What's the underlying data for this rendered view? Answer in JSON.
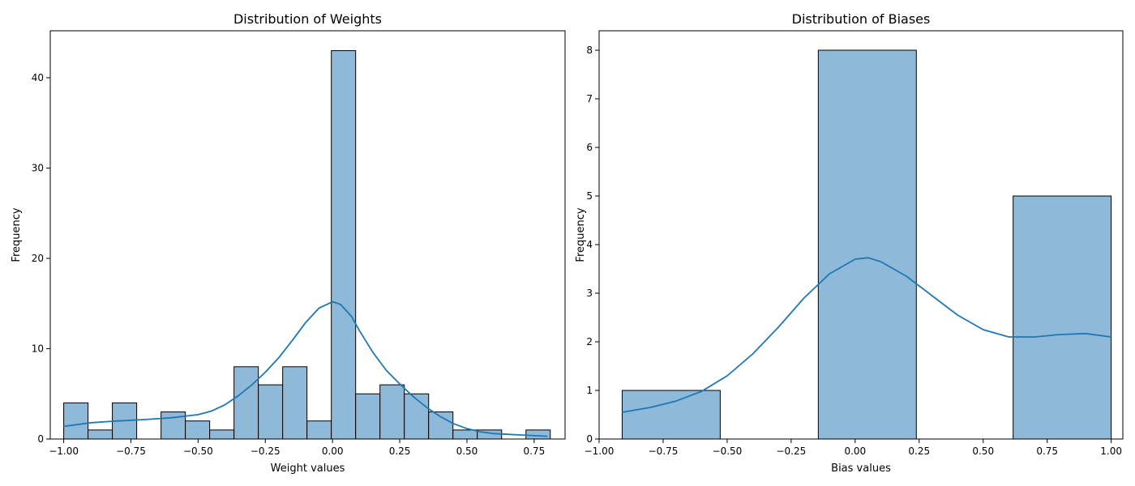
{
  "chart_data": [
    {
      "type": "bar",
      "title": "Distribution of Weights",
      "xlabel": "Weight values",
      "ylabel": "Frequency",
      "xlim": [
        -1.05,
        0.865
      ],
      "ylim": [
        0,
        45.2
      ],
      "x_ticks": [
        -1.0,
        -0.75,
        -0.5,
        -0.25,
        0.0,
        0.25,
        0.5,
        0.75
      ],
      "x_tick_labels": [
        "−1.00",
        "−0.75",
        "−0.50",
        "−0.25",
        "0.00",
        "0.25",
        "0.50",
        "0.75"
      ],
      "y_ticks": [
        0,
        10,
        20,
        30,
        40
      ],
      "y_tick_labels": [
        "0",
        "10",
        "20",
        "30",
        "40"
      ],
      "bin_edges": [
        -1.0,
        -0.9095,
        -0.819,
        -0.7285,
        -0.638,
        -0.5475,
        -0.457,
        -0.3665,
        -0.276,
        -0.1855,
        -0.095,
        -0.0045,
        0.086,
        0.1765,
        0.267,
        0.3575,
        0.448,
        0.5385,
        0.629,
        0.7195,
        0.81
      ],
      "values": [
        4,
        1,
        4,
        0,
        3,
        2,
        1,
        8,
        6,
        8,
        2,
        43,
        5,
        6,
        5,
        3,
        1,
        1,
        0,
        1
      ],
      "kde": [
        [
          -1.0,
          1.4
        ],
        [
          -0.9,
          1.8
        ],
        [
          -0.8,
          2.0
        ],
        [
          -0.7,
          2.15
        ],
        [
          -0.6,
          2.35
        ],
        [
          -0.5,
          2.7
        ],
        [
          -0.45,
          3.1
        ],
        [
          -0.4,
          3.8
        ],
        [
          -0.35,
          4.8
        ],
        [
          -0.3,
          6.0
        ],
        [
          -0.25,
          7.4
        ],
        [
          -0.2,
          9.0
        ],
        [
          -0.15,
          10.9
        ],
        [
          -0.1,
          12.9
        ],
        [
          -0.05,
          14.5
        ],
        [
          0.0,
          15.2
        ],
        [
          0.03,
          14.9
        ],
        [
          0.07,
          13.6
        ],
        [
          0.1,
          12.0
        ],
        [
          0.15,
          9.6
        ],
        [
          0.2,
          7.6
        ],
        [
          0.25,
          6.1
        ],
        [
          0.3,
          4.7
        ],
        [
          0.35,
          3.5
        ],
        [
          0.4,
          2.5
        ],
        [
          0.45,
          1.7
        ],
        [
          0.5,
          1.15
        ],
        [
          0.55,
          0.8
        ],
        [
          0.6,
          0.6
        ],
        [
          0.7,
          0.45
        ],
        [
          0.8,
          0.3
        ]
      ],
      "color": "#1f77b4",
      "bar_fill": "#8fb9d9",
      "grid": false
    },
    {
      "type": "bar",
      "title": "Distribution of Biases",
      "xlabel": "Bias values",
      "ylabel": "Frequency",
      "xlim": [
        -1.0,
        1.0455
      ],
      "ylim": [
        0,
        8.4
      ],
      "x_ticks": [
        -1.0,
        -0.75,
        -0.5,
        -0.25,
        0.0,
        0.25,
        0.5,
        0.75,
        1.0
      ],
      "x_tick_labels": [
        "−1.00",
        "−0.75",
        "−0.50",
        "−0.25",
        "0.00",
        "0.25",
        "0.50",
        "0.75",
        "1.00"
      ],
      "y_ticks": [
        0,
        1,
        2,
        3,
        4,
        5,
        6,
        7,
        8
      ],
      "y_tick_labels": [
        "0",
        "1",
        "2",
        "3",
        "4",
        "5",
        "6",
        "7",
        "8"
      ],
      "bin_edges": [
        -0.91,
        -0.527,
        -0.144,
        0.239,
        0.617,
        1.0
      ],
      "values": [
        1,
        0,
        8,
        0,
        5
      ],
      "kde": [
        [
          -0.91,
          0.55
        ],
        [
          -0.8,
          0.65
        ],
        [
          -0.7,
          0.78
        ],
        [
          -0.6,
          0.98
        ],
        [
          -0.5,
          1.3
        ],
        [
          -0.4,
          1.75
        ],
        [
          -0.3,
          2.3
        ],
        [
          -0.2,
          2.9
        ],
        [
          -0.1,
          3.4
        ],
        [
          0.0,
          3.7
        ],
        [
          0.05,
          3.73
        ],
        [
          0.1,
          3.65
        ],
        [
          0.2,
          3.35
        ],
        [
          0.3,
          2.95
        ],
        [
          0.4,
          2.55
        ],
        [
          0.5,
          2.25
        ],
        [
          0.6,
          2.1
        ],
        [
          0.7,
          2.1
        ],
        [
          0.8,
          2.15
        ],
        [
          0.9,
          2.17
        ],
        [
          1.0,
          2.1
        ]
      ],
      "color": "#1f77b4",
      "bar_fill": "#8fb9d9",
      "grid": false
    }
  ]
}
